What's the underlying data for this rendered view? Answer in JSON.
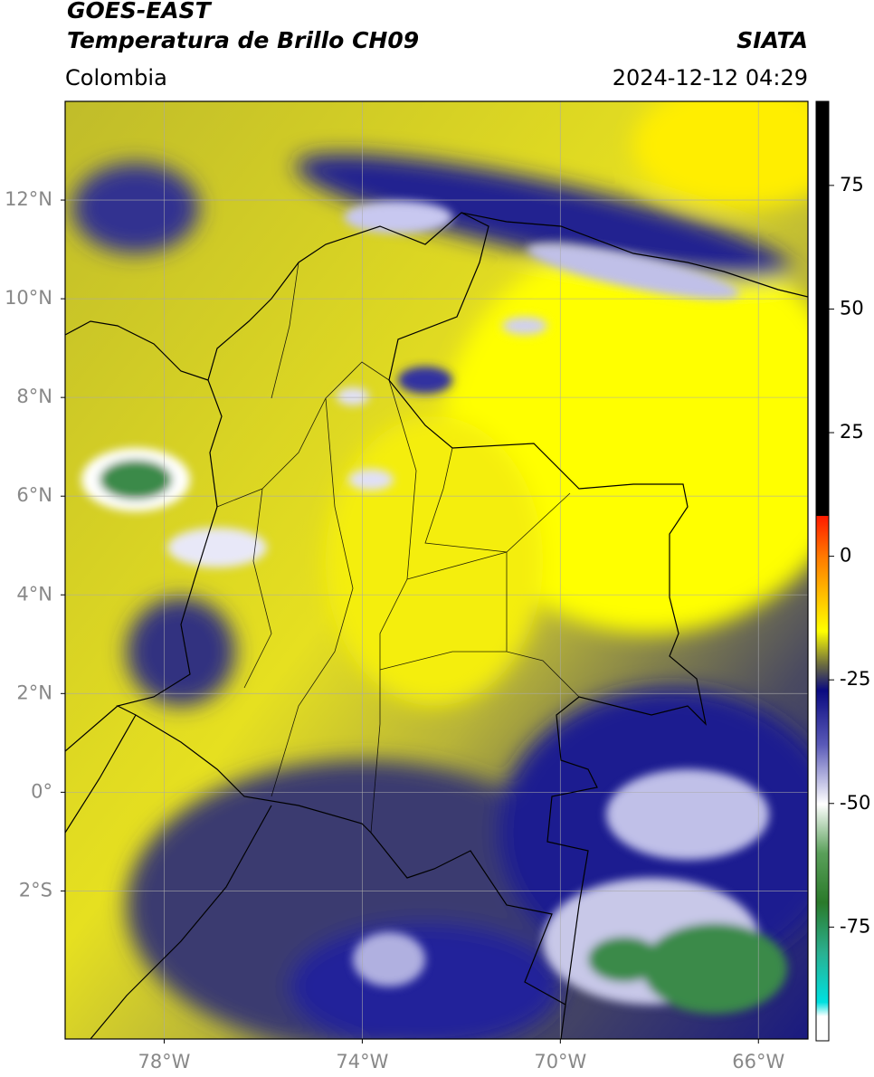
{
  "header": {
    "title": "GOES-EAST",
    "subtitle": "Temperatura de Brillo CH09",
    "source": "SIATA",
    "region": "Colombia",
    "datetime": "2024-12-12 04:29"
  },
  "map": {
    "lonlim": [
      -80,
      -65
    ],
    "latlim": [
      -5,
      14
    ],
    "lon_ticks": [
      {
        "value": -78,
        "label": "78°W"
      },
      {
        "value": -74,
        "label": "74°W"
      },
      {
        "value": -70,
        "label": "70°W"
      },
      {
        "value": -66,
        "label": "66°W"
      }
    ],
    "lat_ticks": [
      {
        "value": 12,
        "label": "12°N"
      },
      {
        "value": 10,
        "label": "10°N"
      },
      {
        "value": 8,
        "label": "8°N"
      },
      {
        "value": 6,
        "label": "6°N"
      },
      {
        "value": 4,
        "label": "4°N"
      },
      {
        "value": 2,
        "label": "2°N"
      },
      {
        "value": 0,
        "label": "0°"
      },
      {
        "value": -2,
        "label": "2°S"
      }
    ],
    "grid": true
  },
  "colorbar": {
    "lim": [
      -98,
      92
    ],
    "ticks": [
      75,
      50,
      25,
      0,
      -25,
      -50,
      -75
    ]
  }
}
